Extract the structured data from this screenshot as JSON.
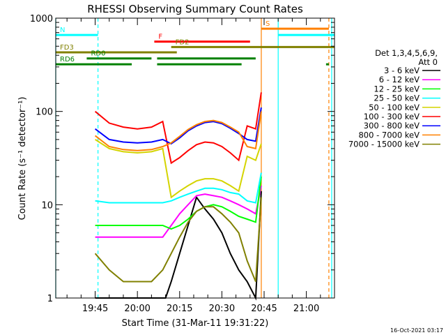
{
  "chart_data": {
    "type": "line",
    "title": "RHESSI Observing Summary Count Rates",
    "xlabel": "Start Time (31-Mar-11 19:31:22)",
    "ylabel": "Count Rate (s⁻¹ detector⁻¹)",
    "yscale": "log",
    "ylim": [
      1,
      1000
    ],
    "xlim": [
      "19:31",
      "21:10"
    ],
    "x_ticks": [
      "19:45",
      "20:00",
      "20:15",
      "20:30",
      "20:45",
      "21:00"
    ],
    "y_ticks": [
      "1",
      "10",
      "100",
      "1000"
    ],
    "timestamp": "16-Oct-2021 03:17",
    "legend_position": "right",
    "legend_header": [
      "Det 1,3,4,5,6,9,",
      "Att 0"
    ],
    "series": [
      {
        "name": "3 - 6 keV",
        "color": "#000000",
        "x": [
          "19:45",
          "19:50",
          "19:55",
          "20:00",
          "20:05",
          "20:10",
          "20:12",
          "20:15",
          "20:18",
          "20:21",
          "20:24",
          "20:27",
          "20:30",
          "20:33",
          "20:36",
          "20:39",
          "20:42",
          "20:44"
        ],
        "values": [
          1,
          1,
          1,
          1,
          1,
          1,
          1.5,
          3,
          6,
          12,
          9,
          7,
          5,
          3,
          2,
          1.5,
          1,
          14
        ]
      },
      {
        "name": "6 - 12 keV",
        "color": "#ff00ff",
        "x": [
          "19:45",
          "19:50",
          "19:55",
          "20:00",
          "20:05",
          "20:09",
          "20:12",
          "20:15",
          "20:18",
          "20:21",
          "20:24",
          "20:27",
          "20:30",
          "20:33",
          "20:36",
          "20:39",
          "20:42",
          "20:44"
        ],
        "values": [
          4.5,
          4.5,
          4.5,
          4.5,
          4.5,
          4.5,
          6,
          8,
          10,
          12.5,
          13,
          12.5,
          12,
          11,
          10,
          9,
          8,
          16
        ]
      },
      {
        "name": "12 - 25 keV",
        "color": "#00ff00",
        "x": [
          "19:45",
          "19:50",
          "19:55",
          "20:00",
          "20:05",
          "20:09",
          "20:12",
          "20:15",
          "20:18",
          "20:21",
          "20:24",
          "20:27",
          "20:30",
          "20:33",
          "20:36",
          "20:39",
          "20:42",
          "20:44"
        ],
        "values": [
          6,
          6,
          6,
          6,
          6,
          6,
          5.5,
          6,
          7,
          8.5,
          9.5,
          10,
          9.5,
          8.5,
          7.5,
          7,
          6.5,
          20
        ]
      },
      {
        "name": "25 - 50 keV",
        "color": "#00ffff",
        "x": [
          "19:45",
          "19:50",
          "19:55",
          "20:00",
          "20:05",
          "20:09",
          "20:12",
          "20:15",
          "20:18",
          "20:21",
          "20:24",
          "20:27",
          "20:30",
          "20:33",
          "20:36",
          "20:39",
          "20:42",
          "20:44"
        ],
        "values": [
          11,
          10.5,
          10.5,
          10.5,
          10.5,
          10.5,
          11,
          12,
          13,
          14,
          15,
          15,
          14.5,
          13.5,
          13,
          11,
          10.5,
          22
        ]
      },
      {
        "name": "50 - 100 keV",
        "color": "#d4d400",
        "x": [
          "19:45",
          "19:50",
          "19:55",
          "20:00",
          "20:05",
          "20:09",
          "20:12",
          "20:15",
          "20:18",
          "20:21",
          "20:24",
          "20:27",
          "20:30",
          "20:33",
          "20:36",
          "20:39",
          "20:42",
          "20:44"
        ],
        "values": [
          50,
          40,
          37,
          36,
          37,
          40,
          12,
          14,
          16,
          18,
          19,
          19,
          18,
          16,
          14,
          33,
          30,
          45
        ]
      },
      {
        "name": "100 - 300 keV",
        "color": "#ff0000",
        "x": [
          "19:45",
          "19:50",
          "19:55",
          "20:00",
          "20:05",
          "20:09",
          "20:12",
          "20:15",
          "20:18",
          "20:21",
          "20:24",
          "20:27",
          "20:30",
          "20:33",
          "20:36",
          "20:39",
          "20:42",
          "20:44"
        ],
        "values": [
          100,
          75,
          68,
          65,
          68,
          78,
          28,
          32,
          38,
          44,
          47,
          46,
          42,
          36,
          30,
          70,
          65,
          160
        ]
      },
      {
        "name": "300 - 800 keV",
        "color": "#0000ff",
        "x": [
          "19:45",
          "19:50",
          "19:55",
          "20:00",
          "20:05",
          "20:09",
          "20:12",
          "20:15",
          "20:18",
          "20:21",
          "20:24",
          "20:27",
          "20:30",
          "20:33",
          "20:36",
          "20:39",
          "20:42",
          "20:44"
        ],
        "values": [
          65,
          50,
          47,
          46,
          47,
          50,
          45,
          52,
          62,
          70,
          76,
          78,
          74,
          66,
          58,
          50,
          48,
          110
        ]
      },
      {
        "name": "800 - 7000 keV",
        "color": "#ff8000",
        "x": [
          "19:45",
          "19:50",
          "19:55",
          "20:00",
          "20:05",
          "20:09",
          "20:12",
          "20:15",
          "20:18",
          "20:21",
          "20:24",
          "20:27",
          "20:30",
          "20:33",
          "20:36",
          "20:39",
          "20:42",
          "20:44"
        ],
        "values": [
          55,
          42,
          39,
          38,
          39,
          42,
          46,
          54,
          64,
          72,
          78,
          80,
          76,
          68,
          60,
          42,
          40,
          100
        ]
      },
      {
        "name": "7000 - 15000 keV",
        "color": "#808000",
        "x": [
          "19:45",
          "19:50",
          "19:55",
          "20:00",
          "20:05",
          "20:09",
          "20:12",
          "20:15",
          "20:18",
          "20:21",
          "20:24",
          "20:27",
          "20:30",
          "20:33",
          "20:36",
          "20:39",
          "20:42",
          "20:44"
        ],
        "values": [
          3,
          2,
          1.5,
          1.5,
          1.5,
          2,
          3,
          4.5,
          6.5,
          8.5,
          9.5,
          9.5,
          8,
          6.5,
          5,
          2.5,
          1.5,
          12
        ]
      }
    ],
    "flag_bars": [
      {
        "label": "N",
        "color": "#00ffff",
        "level": 660,
        "segments": [
          [
            "19:31",
            "19:46"
          ],
          [
            "20:50",
            "21:10"
          ]
        ]
      },
      {
        "label": "S",
        "color": "#ff8000",
        "level": 770,
        "segments": [
          [
            "20:44",
            "21:08"
          ]
        ]
      },
      {
        "label": "F",
        "color": "#ff0000",
        "level": 560,
        "segments": [
          [
            "20:06",
            "20:40"
          ]
        ]
      },
      {
        "label": "FD2",
        "color": "#808000",
        "level": 490,
        "segments": [
          [
            "20:12",
            "21:10"
          ]
        ]
      },
      {
        "label": "FD3",
        "color": "#808000",
        "level": 430,
        "segments": [
          [
            "19:31",
            "20:14"
          ]
        ]
      },
      {
        "label": "RD0",
        "color": "#008000",
        "level": 370,
        "segments": [
          [
            "19:42",
            "20:05"
          ],
          [
            "20:07",
            "20:42"
          ]
        ]
      },
      {
        "label": "RD6",
        "color": "#008000",
        "level": 320,
        "segments": [
          [
            "19:31",
            "19:58"
          ],
          [
            "20:07",
            "20:37"
          ],
          [
            "21:07",
            "21:08"
          ]
        ]
      }
    ],
    "vertical_lines": [
      {
        "x": "19:31",
        "color": "#00ffff",
        "style": "solid"
      },
      {
        "x": "19:46",
        "color": "#00ffff",
        "style": "dashed"
      },
      {
        "x": "20:44",
        "color": "#ff8000",
        "style": "solid"
      },
      {
        "x": "20:50",
        "color": "#00ffff",
        "style": "solid"
      },
      {
        "x": "21:08",
        "color": "#ff8000",
        "style": "dashed"
      },
      {
        "x": "21:09",
        "color": "#00ffff",
        "style": "solid"
      }
    ]
  }
}
